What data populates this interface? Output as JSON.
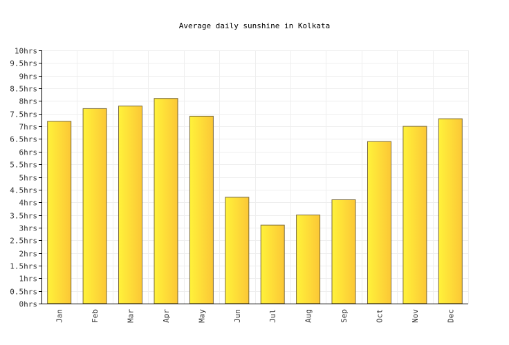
{
  "chart_data": {
    "type": "bar",
    "title": "Average daily sunshine in Kolkata",
    "xlabel": "",
    "ylabel": "",
    "categories": [
      "Jan",
      "Feb",
      "Mar",
      "Apr",
      "May",
      "Jun",
      "Jul",
      "Aug",
      "Sep",
      "Oct",
      "Nov",
      "Dec"
    ],
    "values": [
      7.2,
      7.7,
      7.8,
      8.1,
      7.4,
      4.2,
      3.1,
      3.5,
      4.1,
      6.4,
      7.0,
      7.3
    ],
    "ylim": [
      0,
      10
    ],
    "yticks": [
      0,
      0.5,
      1,
      1.5,
      2,
      2.5,
      3,
      3.5,
      4,
      4.5,
      5,
      5.5,
      6,
      6.5,
      7,
      7.5,
      8,
      8.5,
      9,
      9.5,
      10
    ],
    "ytick_labels": [
      "0hrs",
      "0.5hrs",
      "1hrs",
      "1.5hrs",
      "2hrs",
      "2.5hrs",
      "3hrs",
      "3.5hrs",
      "4hrs",
      "4.5hrs",
      "5hrs",
      "5.5hrs",
      "6hrs",
      "6.5hrs",
      "7hrs",
      "7.5hrs",
      "8hrs",
      "8.5hrs",
      "9hrs",
      "9.5hrs",
      "10hrs"
    ],
    "grid": true,
    "colors": {
      "bar_light": "#fff23a",
      "bar_dark": "#fcc736",
      "bar_stroke": "#7a6a3a",
      "grid": "#eeeeee",
      "axis": "#000000"
    }
  }
}
